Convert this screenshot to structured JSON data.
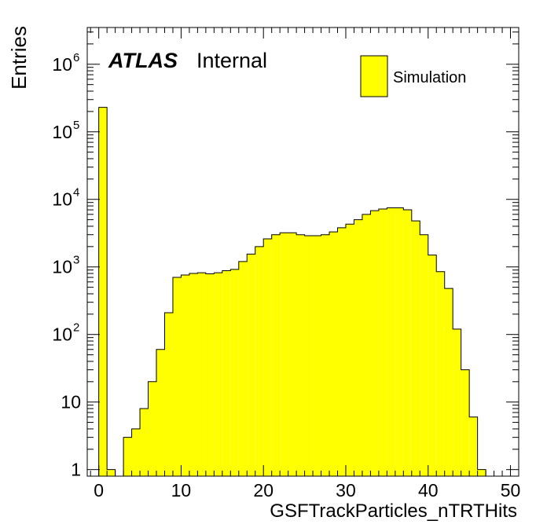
{
  "chart_data": {
    "type": "bar",
    "histogram": true,
    "bin_width": 1,
    "x_start": -1,
    "values": [
      0,
      230000,
      1,
      0,
      3,
      4,
      8,
      20,
      60,
      210,
      700,
      760,
      800,
      820,
      790,
      820,
      880,
      920,
      1200,
      1550,
      2000,
      2600,
      3000,
      3200,
      3200,
      3000,
      2900,
      2900,
      3000,
      3300,
      3800,
      4300,
      5000,
      6000,
      6800,
      7200,
      7500,
      7500,
      7000,
      4800,
      3000,
      1500,
      850,
      480,
      120,
      30,
      6,
      1
    ],
    "xlabel": "GSFTrackParticles_nTRTHits",
    "ylabel": "Entries",
    "xlim": [
      -1.4,
      51
    ],
    "ylim": [
      0.8,
      3500000
    ],
    "y_scale": "log",
    "x_ticks": [
      0,
      10,
      20,
      30,
      40,
      50
    ],
    "y_ticks": [
      {
        "value": 1,
        "base": "1",
        "exp": ""
      },
      {
        "value": 10,
        "base": "10",
        "exp": ""
      },
      {
        "value": 100,
        "base": "10",
        "exp": "2"
      },
      {
        "value": 1000,
        "base": "10",
        "exp": "3"
      },
      {
        "value": 10000,
        "base": "10",
        "exp": "4"
      },
      {
        "value": 100000,
        "base": "10",
        "exp": "5"
      },
      {
        "value": 1000000,
        "base": "10",
        "exp": "6"
      }
    ],
    "legend": [
      {
        "name": "Simulation",
        "color": "#ffff00"
      }
    ],
    "legend_placement": "top-right",
    "fill_color": "#ffff00",
    "line_color": "#000000",
    "grid": false
  },
  "label": {
    "experiment": "ATLAS",
    "status": "Internal"
  }
}
